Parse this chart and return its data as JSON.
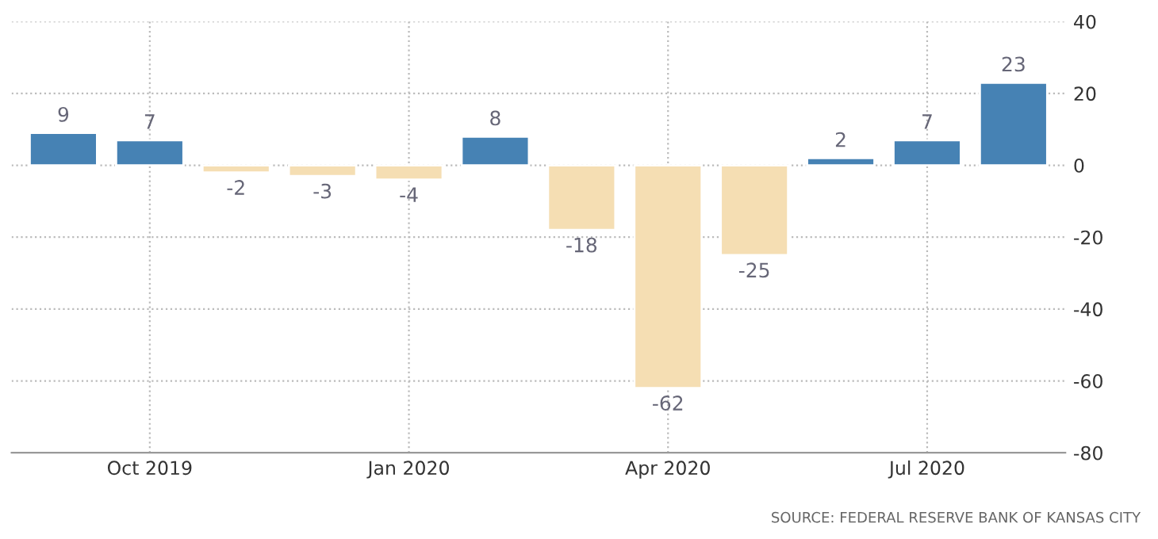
{
  "chart_data": {
    "type": "bar",
    "categories": [
      null,
      "Oct 2019",
      null,
      null,
      "Jan 2020",
      null,
      null,
      "Apr 2020",
      null,
      null,
      "Jul 2020",
      null
    ],
    "values": [
      9,
      7,
      -2,
      -3,
      -4,
      8,
      -18,
      -62,
      -25,
      2,
      7,
      23
    ],
    "colors": [
      "#4682b4",
      "#4682b4",
      "#f5deb3",
      "#f5deb3",
      "#f5deb3",
      "#4682b4",
      "#f5deb3",
      "#f5deb3",
      "#f5deb3",
      "#4682b4",
      "#4682b4",
      "#4682b4"
    ],
    "ylim": [
      -80,
      40
    ],
    "yticks": [
      -80,
      -60,
      -40,
      -20,
      0,
      20,
      40
    ],
    "grid": true,
    "data_labels": true,
    "annotations": [
      "SOURCE: FEDERAL RESERVE BANK OF KANSAS CITY"
    ]
  }
}
